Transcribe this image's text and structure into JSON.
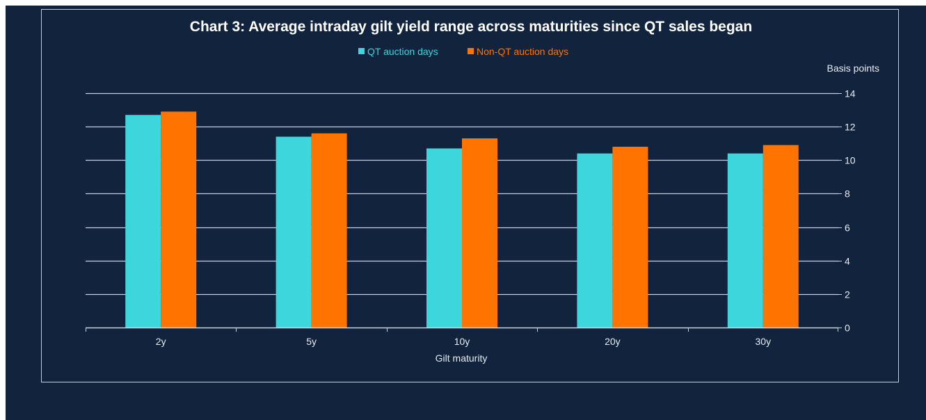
{
  "colors": {
    "background": "#12233d",
    "plot_border": "#c8d0da",
    "gridline": "#c8d0da",
    "series_qt": "#3dd6dc",
    "series_non_qt": "#ff7400",
    "text": "#e8edf3"
  },
  "chart_data": {
    "type": "bar",
    "title": "Chart 3: Average intraday gilt yield range across maturities since QT sales began",
    "xlabel": "Gilt maturity",
    "ylabel": "Basis points",
    "categories": [
      "2y",
      "5y",
      "10y",
      "20y",
      "30y"
    ],
    "series": [
      {
        "name": "QT auction days",
        "values": [
          12.7,
          11.4,
          10.7,
          10.4,
          10.4
        ]
      },
      {
        "name": "Non-QT auction days",
        "values": [
          12.9,
          11.6,
          11.3,
          10.8,
          10.9
        ]
      }
    ],
    "ylim": [
      0,
      14
    ],
    "yticks": [
      "0",
      "2",
      "4",
      "6",
      "8",
      "10",
      "12",
      "14"
    ],
    "grid": true,
    "legend_position": "top-center",
    "y_axis_side": "right"
  }
}
